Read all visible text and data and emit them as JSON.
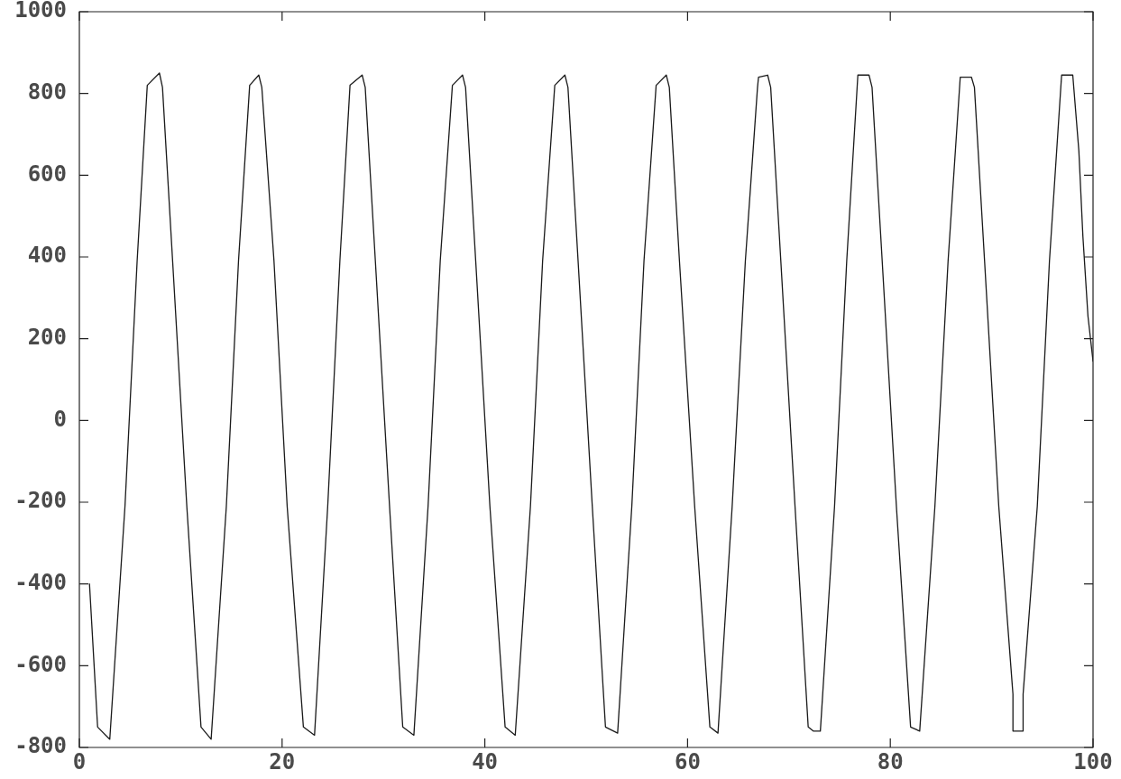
{
  "chart_data": {
    "type": "line",
    "x": [
      1,
      1.8,
      3.0,
      4.5,
      5.7,
      6.7,
      7.9,
      8.2,
      9.2,
      10.6,
      12.0,
      13.0,
      14.5,
      15.7,
      16.8,
      17.7,
      18.0,
      19.2,
      20.5,
      22.1,
      23.2,
      24.5,
      25.7,
      26.7,
      27.9,
      28.2,
      29.2,
      30.6,
      31.9,
      33.0,
      34.4,
      35.6,
      36.8,
      37.8,
      38.1,
      39.1,
      40.5,
      42.0,
      43.0,
      44.5,
      45.7,
      46.9,
      47.9,
      48.2,
      49.2,
      50.6,
      51.9,
      53.1,
      54.5,
      55.7,
      56.9,
      57.9,
      58.2,
      59.2,
      60.7,
      62.2,
      63.0,
      64.4,
      65.7,
      66.9,
      67.0,
      67.9,
      68.2,
      69.2,
      70.6,
      71.9,
      72.4,
      73.1,
      74.5,
      75.7,
      76.8,
      77.9,
      78.2,
      79.2,
      80.6,
      82.0,
      82.9,
      84.4,
      85.7,
      86.9,
      88.0,
      88.3,
      89.3,
      90.7,
      92.1,
      92.1,
      93.1,
      93.1,
      94.5,
      95.7,
      96.9,
      98.0,
      98.6,
      99.0,
      99.5,
      100
    ],
    "series": [
      {
        "color": "#1a1a1a",
        "values": [
          -400,
          -750,
          -780,
          -210,
          390,
          820,
          850,
          815,
          390,
          -210,
          -750,
          -780,
          -210,
          390,
          820,
          845,
          815,
          390,
          -210,
          -750,
          -770,
          -210,
          390,
          820,
          845,
          815,
          390,
          -210,
          -750,
          -770,
          -210,
          390,
          820,
          845,
          815,
          390,
          -210,
          -750,
          -770,
          -210,
          390,
          820,
          845,
          815,
          390,
          -210,
          -750,
          -765,
          -210,
          390,
          820,
          845,
          815,
          390,
          -210,
          -750,
          -765,
          -210,
          390,
          815,
          840,
          845,
          815,
          390,
          -210,
          -750,
          -760,
          -760,
          -210,
          390,
          845,
          845,
          815,
          390,
          -210,
          -750,
          -760,
          -210,
          390,
          840,
          840,
          815,
          390,
          -210,
          -670,
          -760,
          -760,
          -670,
          -210,
          390,
          845,
          845,
          660,
          450,
          255,
          145
        ]
      }
    ],
    "xlim": [
      0,
      100
    ],
    "xticks": [
      0,
      20,
      40,
      60,
      80,
      100
    ],
    "ylim": [
      -800,
      1000
    ],
    "yticks": [
      -800,
      -600,
      -400,
      -200,
      0,
      200,
      400,
      600,
      800,
      1000
    ]
  }
}
